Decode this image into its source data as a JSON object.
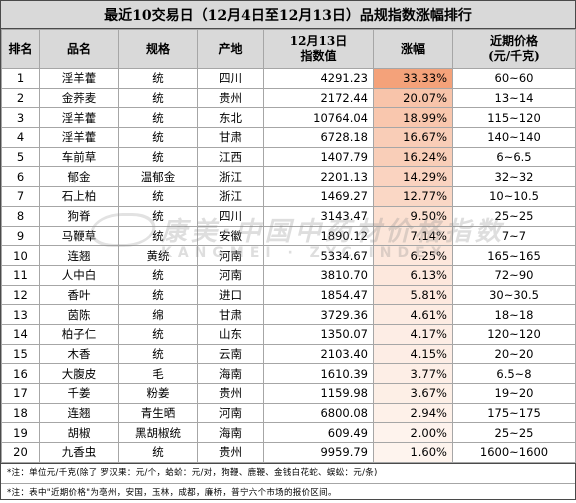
{
  "title": "最近10交易日（12月4日至12月13日）品规指数涨幅排行",
  "headers": {
    "rank": "排名",
    "name": "品名",
    "spec": "规格",
    "origin": "产地",
    "index_line1": "12月13日",
    "index_line2": "指数值",
    "change": "涨幅",
    "price_line1": "近期价格",
    "price_line2": "(元/千克)"
  },
  "rows": [
    {
      "rank": "1",
      "name": "淫羊藿",
      "spec": "统",
      "origin": "四川",
      "index": "4291.23",
      "change": "33.33%",
      "change_value": 33.33,
      "price": "60~60"
    },
    {
      "rank": "2",
      "name": "金荞麦",
      "spec": "统",
      "origin": "贵州",
      "index": "2172.44",
      "change": "20.07%",
      "change_value": 20.07,
      "price": "13~14"
    },
    {
      "rank": "3",
      "name": "淫羊藿",
      "spec": "统",
      "origin": "东北",
      "index": "10764.04",
      "change": "18.99%",
      "change_value": 18.99,
      "price": "115~120"
    },
    {
      "rank": "4",
      "name": "淫羊藿",
      "spec": "统",
      "origin": "甘肃",
      "index": "6728.18",
      "change": "16.67%",
      "change_value": 16.67,
      "price": "140~140"
    },
    {
      "rank": "5",
      "name": "车前草",
      "spec": "统",
      "origin": "江西",
      "index": "1407.79",
      "change": "16.24%",
      "change_value": 16.24,
      "price": "6~6.5"
    },
    {
      "rank": "6",
      "name": "郁金",
      "spec": "温郁金",
      "origin": "浙江",
      "index": "2201.13",
      "change": "14.29%",
      "change_value": 14.29,
      "price": "32~32"
    },
    {
      "rank": "7",
      "name": "石上柏",
      "spec": "统",
      "origin": "浙江",
      "index": "1469.27",
      "change": "12.77%",
      "change_value": 12.77,
      "price": "10~10.5"
    },
    {
      "rank": "8",
      "name": "狗脊",
      "spec": "统",
      "origin": "四川",
      "index": "3143.47",
      "change": "9.50%",
      "change_value": 9.5,
      "price": "25~25"
    },
    {
      "rank": "9",
      "name": "马鞭草",
      "spec": "统",
      "origin": "安徽",
      "index": "1890.12",
      "change": "7.14%",
      "change_value": 7.14,
      "price": "7~7"
    },
    {
      "rank": "10",
      "name": "连翘",
      "spec": "黄统",
      "origin": "河南",
      "index": "5334.67",
      "change": "6.25%",
      "change_value": 6.25,
      "price": "165~165"
    },
    {
      "rank": "11",
      "name": "人中白",
      "spec": "统",
      "origin": "河南",
      "index": "3810.70",
      "change": "6.13%",
      "change_value": 6.13,
      "price": "72~90"
    },
    {
      "rank": "12",
      "name": "香叶",
      "spec": "统",
      "origin": "进口",
      "index": "1854.47",
      "change": "5.81%",
      "change_value": 5.81,
      "price": "30~30.5"
    },
    {
      "rank": "13",
      "name": "茵陈",
      "spec": "绵",
      "origin": "甘肃",
      "index": "3729.36",
      "change": "4.61%",
      "change_value": 4.61,
      "price": "18~18"
    },
    {
      "rank": "14",
      "name": "柏子仁",
      "spec": "统",
      "origin": "山东",
      "index": "1350.07",
      "change": "4.17%",
      "change_value": 4.17,
      "price": "120~120"
    },
    {
      "rank": "15",
      "name": "木香",
      "spec": "统",
      "origin": "云南",
      "index": "2103.40",
      "change": "4.15%",
      "change_value": 4.15,
      "price": "20~20"
    },
    {
      "rank": "16",
      "name": "大腹皮",
      "spec": "毛",
      "origin": "海南",
      "index": "1610.39",
      "change": "3.77%",
      "change_value": 3.77,
      "price": "6.5~8"
    },
    {
      "rank": "17",
      "name": "千姜",
      "spec": "粉姜",
      "origin": "贵州",
      "index": "1159.98",
      "change": "3.67%",
      "change_value": 3.67,
      "price": "19~20"
    },
    {
      "rank": "18",
      "name": "连翘",
      "spec": "青生晒",
      "origin": "河南",
      "index": "6800.08",
      "change": "2.94%",
      "change_value": 2.94,
      "price": "175~175"
    },
    {
      "rank": "19",
      "name": "胡椒",
      "spec": "黑胡椒统",
      "origin": "海南",
      "index": "609.49",
      "change": "2.00%",
      "change_value": 2.0,
      "price": "25~25"
    },
    {
      "rank": "20",
      "name": "九香虫",
      "spec": "统",
      "origin": "贵州",
      "index": "9959.79",
      "change": "1.60%",
      "change_value": 1.6,
      "price": "1600~1600"
    }
  ],
  "notes": [
    "*注：单位元/千克(除了 罗汉果：元/个，蛤蚧：元/对，狗鞭、鹿鞭、金钱白花蛇、蜈蚣：元/条)",
    "*注：表中\"近期价格\"为亳州，安国，玉林，成都，廉桥，普宁六个市场的报价区间。"
  ],
  "watermark": {
    "main": "康美·中国中药材价格指数",
    "sub": "KANGMEI · ZYC INDEX"
  },
  "colors": {
    "heat_high": "#f4a27a",
    "heat_low": "#fef4ee",
    "header_bg": "#d9d9d9"
  }
}
